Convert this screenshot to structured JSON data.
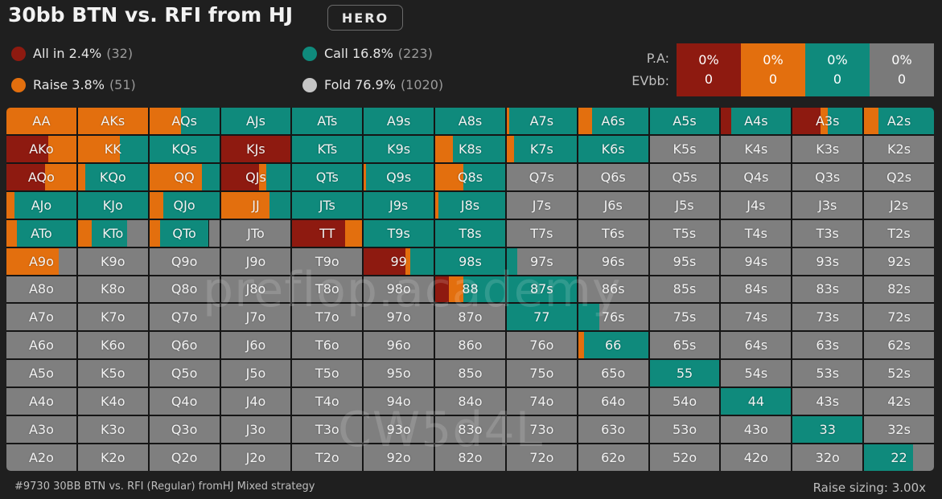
{
  "header": {
    "title": "30bb BTN vs. RFI from HJ",
    "badge": "HERO"
  },
  "legend": [
    {
      "label": "All in 2.4%",
      "count": "(32)",
      "color": "#8e1a10"
    },
    {
      "label": "Raise 3.8%",
      "count": "(51)",
      "color": "#e36f0e"
    },
    {
      "label": "Call 16.8%",
      "count": "(223)",
      "color": "#0f8a7c"
    },
    {
      "label": "Fold 76.9%",
      "count": "(1020)",
      "color": "#c6c6c6"
    }
  ],
  "pa": {
    "pa_label": "P.A:",
    "ev_label": "EVbb:",
    "boxes": [
      {
        "pct": "0%",
        "ev": "0",
        "color": "#8e1a10"
      },
      {
        "pct": "0%",
        "ev": "0",
        "color": "#e36f0e"
      },
      {
        "pct": "0%",
        "ev": "0",
        "color": "#0f8a7c"
      },
      {
        "pct": "0%",
        "ev": "0",
        "color": "#7a7a7a"
      }
    ]
  },
  "colors": {
    "allin": "#8e1a10",
    "raise": "#e36f0e",
    "call": "#0f8a7c",
    "fold": "#7f7f7f"
  },
  "grid": {
    "labels": [
      [
        "AA",
        "AKs",
        "AQs",
        "AJs",
        "ATs",
        "A9s",
        "A8s",
        "A7s",
        "A6s",
        "A5s",
        "A4s",
        "A3s",
        "A2s"
      ],
      [
        "AKo",
        "KK",
        "KQs",
        "KJs",
        "KTs",
        "K9s",
        "K8s",
        "K7s",
        "K6s",
        "K5s",
        "K4s",
        "K3s",
        "K2s"
      ],
      [
        "AQo",
        "KQo",
        "QQ",
        "QJs",
        "QTs",
        "Q9s",
        "Q8s",
        "Q7s",
        "Q6s",
        "Q5s",
        "Q4s",
        "Q3s",
        "Q2s"
      ],
      [
        "AJo",
        "KJo",
        "QJo",
        "JJ",
        "JTs",
        "J9s",
        "J8s",
        "J7s",
        "J6s",
        "J5s",
        "J4s",
        "J3s",
        "J2s"
      ],
      [
        "ATo",
        "KTo",
        "QTo",
        "JTo",
        "TT",
        "T9s",
        "T8s",
        "T7s",
        "T6s",
        "T5s",
        "T4s",
        "T3s",
        "T2s"
      ],
      [
        "A9o",
        "K9o",
        "Q9o",
        "J9o",
        "T9o",
        "99",
        "98s",
        "97s",
        "96s",
        "95s",
        "94s",
        "93s",
        "92s"
      ],
      [
        "A8o",
        "K8o",
        "Q8o",
        "J8o",
        "T8o",
        "98o",
        "88",
        "87s",
        "86s",
        "85s",
        "84s",
        "83s",
        "82s"
      ],
      [
        "A7o",
        "K7o",
        "Q7o",
        "J7o",
        "T7o",
        "97o",
        "87o",
        "77",
        "76s",
        "75s",
        "74s",
        "73s",
        "72s"
      ],
      [
        "A6o",
        "K6o",
        "Q6o",
        "J6o",
        "T6o",
        "96o",
        "86o",
        "76o",
        "66",
        "65s",
        "64s",
        "63s",
        "62s"
      ],
      [
        "A5o",
        "K5o",
        "Q5o",
        "J5o",
        "T5o",
        "95o",
        "85o",
        "75o",
        "65o",
        "55",
        "54s",
        "53s",
        "52s"
      ],
      [
        "A4o",
        "K4o",
        "Q4o",
        "J4o",
        "T4o",
        "94o",
        "84o",
        "74o",
        "64o",
        "54o",
        "44",
        "43s",
        "42s"
      ],
      [
        "A3o",
        "K3o",
        "Q3o",
        "J3o",
        "T3o",
        "93o",
        "83o",
        "73o",
        "63o",
        "53o",
        "43o",
        "33",
        "32s"
      ],
      [
        "A2o",
        "K2o",
        "Q2o",
        "J2o",
        "T2o",
        "92o",
        "82o",
        "72o",
        "62o",
        "52o",
        "42o",
        "32o",
        "22"
      ]
    ],
    "mixes": [
      [
        [
          0,
          1,
          0,
          0
        ],
        [
          0,
          1,
          0,
          0
        ],
        [
          0,
          0.45,
          0.55,
          0
        ],
        [
          0,
          0,
          1,
          0
        ],
        [
          0,
          0,
          1,
          0
        ],
        [
          0,
          0,
          1,
          0
        ],
        [
          0,
          0,
          1,
          0
        ],
        [
          0,
          0.03,
          0.97,
          0
        ],
        [
          0,
          0.2,
          0.8,
          0
        ],
        [
          0,
          0,
          1,
          0
        ],
        [
          0.15,
          0,
          0.85,
          0
        ],
        [
          0.4,
          0.1,
          0.5,
          0
        ],
        [
          0,
          0.2,
          0.8,
          0
        ]
      ],
      [
        [
          0.6,
          0.4,
          0,
          0
        ],
        [
          0,
          0.6,
          0.4,
          0
        ],
        [
          0,
          0,
          1,
          0
        ],
        [
          1,
          0,
          0,
          0
        ],
        [
          0,
          0,
          1,
          0
        ],
        [
          0,
          0,
          1,
          0
        ],
        [
          0,
          0.25,
          0.75,
          0
        ],
        [
          0,
          0.1,
          0.9,
          0
        ],
        [
          0,
          0,
          1,
          0
        ],
        [
          0,
          0,
          0,
          1
        ],
        [
          0,
          0,
          0,
          1
        ],
        [
          0,
          0,
          0,
          1
        ],
        [
          0,
          0,
          0,
          1
        ]
      ],
      [
        [
          0.55,
          0.45,
          0,
          0
        ],
        [
          0,
          0.1,
          0.9,
          0
        ],
        [
          0,
          0.75,
          0.25,
          0
        ],
        [
          0.55,
          0.1,
          0.35,
          0
        ],
        [
          0,
          0,
          1,
          0
        ],
        [
          0,
          0.03,
          0.97,
          0
        ],
        [
          0,
          0.4,
          0.6,
          0
        ],
        [
          0,
          0,
          0,
          1
        ],
        [
          0,
          0,
          0,
          1
        ],
        [
          0,
          0,
          0,
          1
        ],
        [
          0,
          0,
          0,
          1
        ],
        [
          0,
          0,
          0,
          1
        ],
        [
          0,
          0,
          0,
          1
        ]
      ],
      [
        [
          0,
          0.12,
          0.88,
          0
        ],
        [
          0,
          0,
          1,
          0
        ],
        [
          0,
          0.2,
          0.8,
          0
        ],
        [
          0,
          0.7,
          0.3,
          0
        ],
        [
          0,
          0,
          1,
          0
        ],
        [
          0,
          0,
          1,
          0
        ],
        [
          0,
          0.05,
          0.95,
          0
        ],
        [
          0,
          0,
          0,
          1
        ],
        [
          0,
          0,
          0,
          1
        ],
        [
          0,
          0,
          0,
          1
        ],
        [
          0,
          0,
          0,
          1
        ],
        [
          0,
          0,
          0,
          1
        ],
        [
          0,
          0,
          0,
          1
        ]
      ],
      [
        [
          0,
          0.15,
          0.85,
          0
        ],
        [
          0,
          0.2,
          0.5,
          0.3
        ],
        [
          0,
          0.15,
          0.7,
          0.15
        ],
        [
          0,
          0,
          0,
          1
        ],
        [
          0.75,
          0.25,
          0,
          0
        ],
        [
          0,
          0,
          1,
          0
        ],
        [
          0,
          0,
          1,
          0
        ],
        [
          0,
          0,
          0,
          1
        ],
        [
          0,
          0,
          0,
          1
        ],
        [
          0,
          0,
          0,
          1
        ],
        [
          0,
          0,
          0,
          1
        ],
        [
          0,
          0,
          0,
          1
        ],
        [
          0,
          0,
          0,
          1
        ]
      ],
      [
        [
          0,
          0.75,
          0,
          0.25
        ],
        [
          0,
          0,
          0,
          1
        ],
        [
          0,
          0,
          0,
          1
        ],
        [
          0,
          0,
          0,
          1
        ],
        [
          0,
          0,
          0,
          1
        ],
        [
          0.6,
          0.07,
          0.33,
          0
        ],
        [
          0,
          0,
          1,
          0
        ],
        [
          0,
          0,
          0.15,
          0.85
        ],
        [
          0,
          0,
          0,
          1
        ],
        [
          0,
          0,
          0,
          1
        ],
        [
          0,
          0,
          0,
          1
        ],
        [
          0,
          0,
          0,
          1
        ],
        [
          0,
          0,
          0,
          1
        ]
      ],
      [
        [
          0,
          0,
          0,
          1
        ],
        [
          0,
          0,
          0,
          1
        ],
        [
          0,
          0,
          0,
          1
        ],
        [
          0,
          0,
          0,
          1
        ],
        [
          0,
          0,
          0,
          1
        ],
        [
          0,
          0,
          0,
          1
        ],
        [
          0.2,
          0.2,
          0.6,
          0
        ],
        [
          0,
          0,
          1,
          0
        ],
        [
          0,
          0,
          0,
          1
        ],
        [
          0,
          0,
          0,
          1
        ],
        [
          0,
          0,
          0,
          1
        ],
        [
          0,
          0,
          0,
          1
        ],
        [
          0,
          0,
          0,
          1
        ]
      ],
      [
        [
          0,
          0,
          0,
          1
        ],
        [
          0,
          0,
          0,
          1
        ],
        [
          0,
          0,
          0,
          1
        ],
        [
          0,
          0,
          0,
          1
        ],
        [
          0,
          0,
          0,
          1
        ],
        [
          0,
          0,
          0,
          1
        ],
        [
          0,
          0,
          0,
          1
        ],
        [
          0,
          0,
          1,
          0
        ],
        [
          0,
          0,
          0.3,
          0.7
        ],
        [
          0,
          0,
          0,
          1
        ],
        [
          0,
          0,
          0,
          1
        ],
        [
          0,
          0,
          0,
          1
        ],
        [
          0,
          0,
          0,
          1
        ]
      ],
      [
        [
          0,
          0,
          0,
          1
        ],
        [
          0,
          0,
          0,
          1
        ],
        [
          0,
          0,
          0,
          1
        ],
        [
          0,
          0,
          0,
          1
        ],
        [
          0,
          0,
          0,
          1
        ],
        [
          0,
          0,
          0,
          1
        ],
        [
          0,
          0,
          0,
          1
        ],
        [
          0,
          0,
          0,
          1
        ],
        [
          0,
          0.08,
          0.92,
          0
        ],
        [
          0,
          0,
          0,
          1
        ],
        [
          0,
          0,
          0,
          1
        ],
        [
          0,
          0,
          0,
          1
        ],
        [
          0,
          0,
          0,
          1
        ]
      ],
      [
        [
          0,
          0,
          0,
          1
        ],
        [
          0,
          0,
          0,
          1
        ],
        [
          0,
          0,
          0,
          1
        ],
        [
          0,
          0,
          0,
          1
        ],
        [
          0,
          0,
          0,
          1
        ],
        [
          0,
          0,
          0,
          1
        ],
        [
          0,
          0,
          0,
          1
        ],
        [
          0,
          0,
          0,
          1
        ],
        [
          0,
          0,
          0,
          1
        ],
        [
          0,
          0,
          1,
          0
        ],
        [
          0,
          0,
          0,
          1
        ],
        [
          0,
          0,
          0,
          1
        ],
        [
          0,
          0,
          0,
          1
        ]
      ],
      [
        [
          0,
          0,
          0,
          1
        ],
        [
          0,
          0,
          0,
          1
        ],
        [
          0,
          0,
          0,
          1
        ],
        [
          0,
          0,
          0,
          1
        ],
        [
          0,
          0,
          0,
          1
        ],
        [
          0,
          0,
          0,
          1
        ],
        [
          0,
          0,
          0,
          1
        ],
        [
          0,
          0,
          0,
          1
        ],
        [
          0,
          0,
          0,
          1
        ],
        [
          0,
          0,
          0,
          1
        ],
        [
          0,
          0,
          1,
          0
        ],
        [
          0,
          0,
          0,
          1
        ],
        [
          0,
          0,
          0,
          1
        ]
      ],
      [
        [
          0,
          0,
          0,
          1
        ],
        [
          0,
          0,
          0,
          1
        ],
        [
          0,
          0,
          0,
          1
        ],
        [
          0,
          0,
          0,
          1
        ],
        [
          0,
          0,
          0,
          1
        ],
        [
          0,
          0,
          0,
          1
        ],
        [
          0,
          0,
          0,
          1
        ],
        [
          0,
          0,
          0,
          1
        ],
        [
          0,
          0,
          0,
          1
        ],
        [
          0,
          0,
          0,
          1
        ],
        [
          0,
          0,
          0,
          1
        ],
        [
          0,
          0,
          1,
          0
        ],
        [
          0,
          0,
          0,
          1
        ]
      ],
      [
        [
          0,
          0,
          0,
          1
        ],
        [
          0,
          0,
          0,
          1
        ],
        [
          0,
          0,
          0,
          1
        ],
        [
          0,
          0,
          0,
          1
        ],
        [
          0,
          0,
          0,
          1
        ],
        [
          0,
          0,
          0,
          1
        ],
        [
          0,
          0,
          0,
          1
        ],
        [
          0,
          0,
          0,
          1
        ],
        [
          0,
          0,
          0,
          1
        ],
        [
          0,
          0,
          0,
          1
        ],
        [
          0,
          0,
          0,
          1
        ],
        [
          0,
          0,
          0,
          1
        ],
        [
          0,
          0,
          0.7,
          0.3
        ]
      ]
    ]
  },
  "watermarks": [
    "preflop.academy",
    "CW5d4L"
  ],
  "footer": {
    "left": "#9730 30BB BTN vs. RFI (Regular) fromHJ Mixed strategy",
    "right": "Raise sizing: 3.00x"
  }
}
